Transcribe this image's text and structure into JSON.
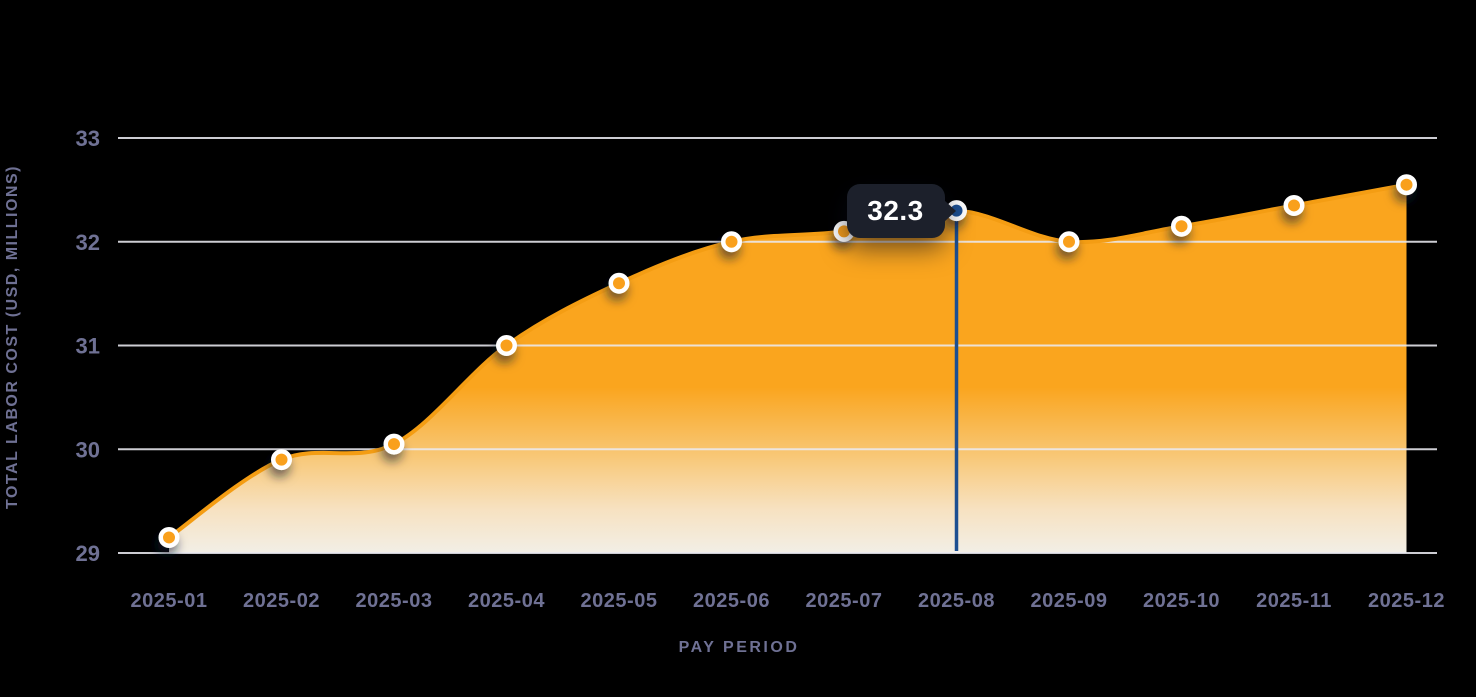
{
  "chart_data": {
    "type": "area",
    "title": "",
    "xlabel": "PAY PERIOD",
    "ylabel": "TOTAL LABOR COST (USD, MILLIONS)",
    "categories": [
      "2025-01",
      "2025-02",
      "2025-03",
      "2025-04",
      "2025-05",
      "2025-06",
      "2025-07",
      "2025-08",
      "2025-09",
      "2025-10",
      "2025-11",
      "2025-12"
    ],
    "series": [
      {
        "name": "Total labor cost",
        "values": [
          29.15,
          29.9,
          30.05,
          31.0,
          31.6,
          32.0,
          32.1,
          32.3,
          32.0,
          32.15,
          32.35,
          32.55
        ]
      }
    ],
    "ylim": [
      29,
      33
    ],
    "yticks": [
      29,
      30,
      31,
      32,
      33
    ],
    "grid": "horizontal",
    "legend": "none",
    "highlight": {
      "category": "2025-08",
      "index": 7,
      "value": 32.3,
      "tooltip_label": "32.3"
    },
    "colors": {
      "background": "#000000",
      "line": "#F49D13",
      "area_top": "#FAA51E",
      "area_mid": "#F8C878",
      "area_low": "#FCE6C4",
      "area_bottom": "#FFFBF2",
      "marker": "#F9A01B",
      "marker_ring": "#FFFFFF",
      "highlight_marker": "#1D4F91",
      "highlight_line": "#1D4F91",
      "tooltip_bg": "#1C202B",
      "tooltip_text": "#FFFFFF",
      "grid": "#E9E9F0",
      "axis_text": "#6F7194"
    }
  }
}
